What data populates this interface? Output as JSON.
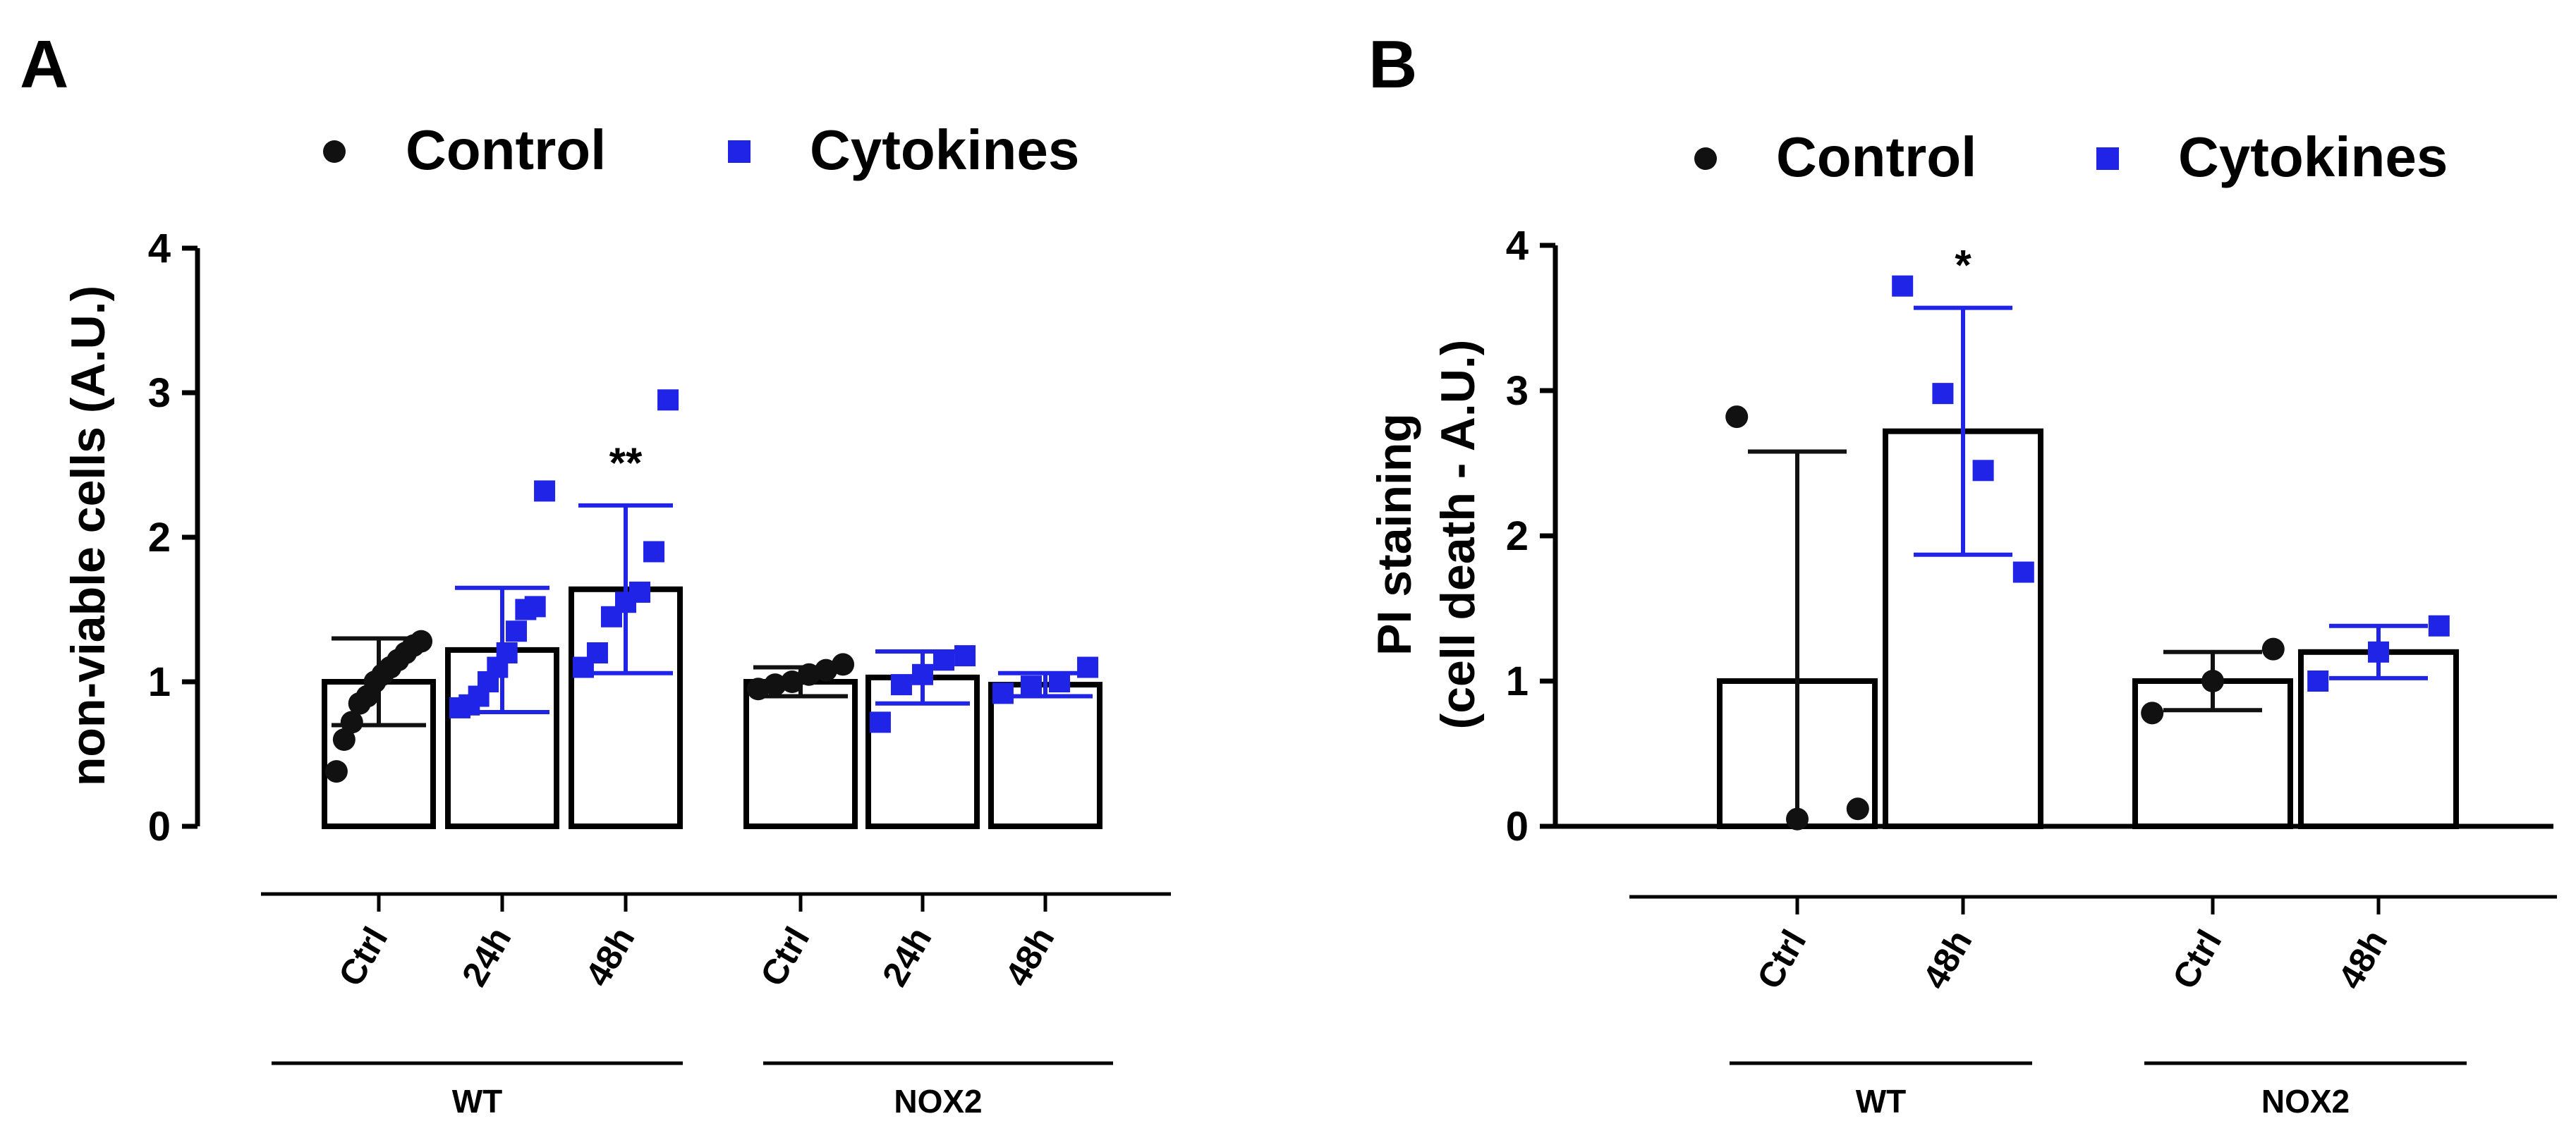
{
  "colors": {
    "control": "#111111",
    "cytokines": "#1f24e6",
    "axis": "#000000",
    "bar_fill": "#ffffff"
  },
  "chart_data": [
    {
      "panel": "A",
      "type": "bar",
      "title": "",
      "ylabel": "non-viable cells (A.U.)",
      "xlabel": "",
      "ylim": [
        0,
        4
      ],
      "yticks": [
        "0",
        "1",
        "2",
        "3",
        "4"
      ],
      "legend": {
        "placement": "top",
        "entries": [
          {
            "label": "Control",
            "marker": "circle"
          },
          {
            "label": "Cytokines",
            "marker": "square"
          }
        ]
      },
      "groups": [
        {
          "label": "WT",
          "categories": [
            "Ctrl",
            "24h",
            "48h"
          ]
        },
        {
          "label": "NOX2",
          "categories": [
            "Ctrl",
            "24h",
            "48h"
          ]
        }
      ],
      "bars": [
        {
          "group": "WT",
          "category": "Ctrl",
          "condition": "Control",
          "mean": 1.0,
          "err": 0.3,
          "significance": "",
          "points": [
            0.38,
            0.6,
            0.72,
            0.85,
            0.9,
            1.0,
            1.05,
            1.1,
            1.15,
            1.2,
            1.25,
            1.28
          ]
        },
        {
          "group": "WT",
          "category": "24h",
          "condition": "Cytokines",
          "mean": 1.22,
          "err": 0.43,
          "significance": "",
          "points": [
            0.82,
            0.84,
            0.9,
            1.0,
            1.1,
            1.2,
            1.35,
            1.5,
            1.52,
            2.32
          ]
        },
        {
          "group": "WT",
          "category": "48h",
          "condition": "Cytokines",
          "mean": 1.64,
          "err": 0.58,
          "significance": "**",
          "points": [
            1.1,
            1.2,
            1.45,
            1.55,
            1.62,
            1.9,
            2.95
          ]
        },
        {
          "group": "NOX2",
          "category": "Ctrl",
          "condition": "Control",
          "mean": 1.0,
          "err": 0.1,
          "significance": "",
          "points": [
            0.95,
            0.98,
            1.0,
            1.05,
            1.08,
            1.12
          ]
        },
        {
          "group": "NOX2",
          "category": "24h",
          "condition": "Cytokines",
          "mean": 1.03,
          "err": 0.18,
          "significance": "",
          "points": [
            0.72,
            0.98,
            1.05,
            1.15,
            1.18
          ]
        },
        {
          "group": "NOX2",
          "category": "48h",
          "condition": "Cytokines",
          "mean": 0.98,
          "err": 0.08,
          "significance": "",
          "points": [
            0.92,
            0.97,
            1.0,
            1.1
          ]
        }
      ]
    },
    {
      "panel": "B",
      "type": "bar",
      "title": "",
      "ylabel_line1": "PI staining",
      "ylabel_line2": "(cell death - A.U.)",
      "xlabel": "",
      "ylim": [
        0,
        4
      ],
      "yticks": [
        "0",
        "1",
        "2",
        "3",
        "4"
      ],
      "legend": {
        "placement": "top",
        "entries": [
          {
            "label": "Control",
            "marker": "circle"
          },
          {
            "label": "Cytokines",
            "marker": "square"
          }
        ]
      },
      "groups": [
        {
          "label": "WT",
          "categories": [
            "Ctrl",
            "48h"
          ]
        },
        {
          "label": "NOX2",
          "categories": [
            "Ctrl",
            "48h"
          ]
        }
      ],
      "bars": [
        {
          "group": "WT",
          "category": "Ctrl",
          "condition": "Control",
          "mean": 1.0,
          "err": 1.58,
          "significance": "",
          "points": [
            2.82,
            0.05,
            0.12
          ]
        },
        {
          "group": "WT",
          "category": "48h",
          "condition": "Cytokines",
          "mean": 2.72,
          "err": 0.85,
          "significance": "*",
          "points": [
            3.72,
            2.98,
            2.45,
            1.75
          ]
        },
        {
          "group": "NOX2",
          "category": "Ctrl",
          "condition": "Control",
          "mean": 1.0,
          "err": 0.2,
          "significance": "",
          "points": [
            0.78,
            1.0,
            1.22
          ]
        },
        {
          "group": "NOX2",
          "category": "48h",
          "condition": "Cytokines",
          "mean": 1.2,
          "err": 0.18,
          "significance": "",
          "points": [
            1.0,
            1.2,
            1.38
          ]
        }
      ]
    }
  ]
}
